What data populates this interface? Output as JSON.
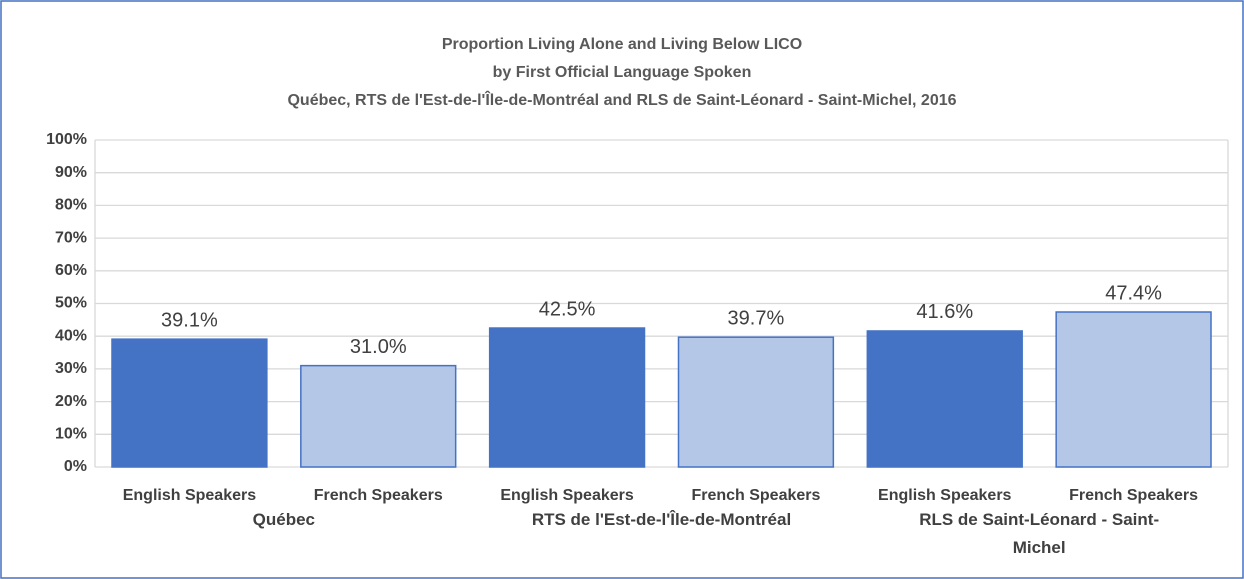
{
  "chart_data": {
    "type": "bar",
    "title": [
      "Proportion Living Alone and Living Below LICO",
      "by First Official Language Spoken",
      "Québec, RTS de l'Est-de-l'Île-de-Montréal and RLS de Saint-Léonard - Saint-Michel, 2016"
    ],
    "categories": [
      "Québec",
      "RTS de l'Est-de-l'Île-de-Montréal",
      "RLS de Saint-Léonard  - Saint-Michel"
    ],
    "series": [
      {
        "name": "English Speakers",
        "color": "#4472c4",
        "values": [
          39.1,
          42.5,
          41.6
        ],
        "value_labels": [
          "39.1%",
          "42.5%",
          "41.6%"
        ]
      },
      {
        "name": "French Speakers",
        "color": "#b4c7e7",
        "values": [
          31.0,
          39.7,
          47.4
        ],
        "value_labels": [
          "31.0%",
          "39.7%",
          "47.4%"
        ]
      }
    ],
    "ylim": [
      0,
      100
    ],
    "yticks": [
      {
        "value": 0,
        "label": "0%"
      },
      {
        "value": 10,
        "label": "10%"
      },
      {
        "value": 20,
        "label": "20%"
      },
      {
        "value": 30,
        "label": "30%"
      },
      {
        "value": 40,
        "label": "40%"
      },
      {
        "value": 50,
        "label": "50%"
      },
      {
        "value": 60,
        "label": "60%"
      },
      {
        "value": 70,
        "label": "70%"
      },
      {
        "value": 80,
        "label": "80%"
      },
      {
        "value": 90,
        "label": "90%"
      },
      {
        "value": 100,
        "label": "100%"
      }
    ],
    "grid": true
  }
}
